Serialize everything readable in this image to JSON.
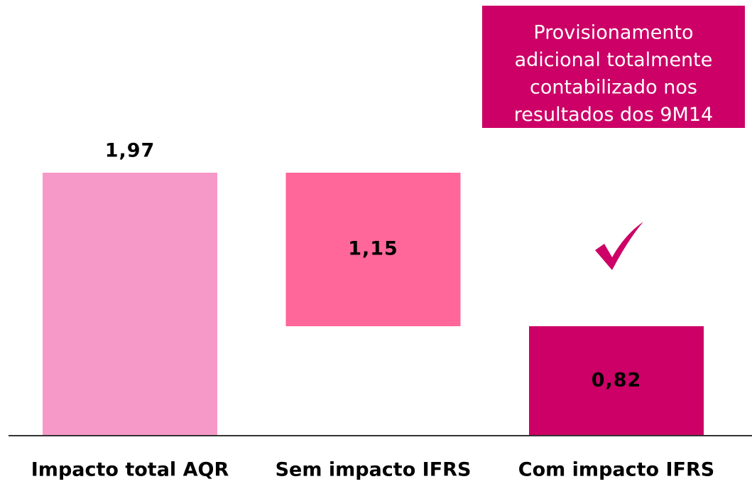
{
  "chart_data": {
    "type": "waterfall",
    "categories": [
      "Impacto total AQR",
      "Sem impacto IFRS",
      "Com impacto IFRS"
    ],
    "values": [
      1.97,
      1.15,
      0.82
    ],
    "value_labels": [
      "1,97",
      "1,15",
      "0,82"
    ],
    "measure": [
      "absolute",
      "decrease",
      "absolute"
    ],
    "colors": [
      "#f799c8",
      "#ff6699",
      "#cc0066"
    ],
    "annotation": [
      "Provisionamento",
      "adicional totalmente",
      "contabilizado nos",
      "resultados dos 9M14"
    ],
    "annotation_color": "#cc0066"
  }
}
